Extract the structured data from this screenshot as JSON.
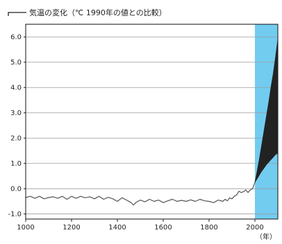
{
  "chart_data": {
    "type": "line",
    "title": "気温の変化（℃ 1990年の値との比較）",
    "xlabel": "（年）",
    "ylabel": "",
    "xlim": [
      1000,
      2100
    ],
    "ylim": [
      -1.2,
      6.5
    ],
    "x_ticks": [
      1000,
      1200,
      1400,
      1600,
      1800,
      2000
    ],
    "x_tick_labels": [
      "1000",
      "1200",
      "1400",
      "1600",
      "1800",
      "2000"
    ],
    "y_ticks": [
      -1.0,
      0.0,
      1.0,
      2.0,
      3.0,
      4.0,
      5.0,
      6.0
    ],
    "y_tick_labels": [
      "-1.0",
      "0.0",
      "1.0",
      "2.0",
      "3.0",
      "4.0",
      "5.0",
      "6.0"
    ],
    "grid": true,
    "projection_shading": {
      "x_start": 2000,
      "x_end": 2100,
      "color": "#72ccf0"
    },
    "series": [
      {
        "kind": "line",
        "color": "#555555",
        "x": [
          1000,
          1020,
          1040,
          1060,
          1080,
          1100,
          1120,
          1140,
          1160,
          1180,
          1200,
          1220,
          1240,
          1260,
          1280,
          1300,
          1320,
          1340,
          1360,
          1380,
          1400,
          1420,
          1440,
          1460,
          1470,
          1480,
          1500,
          1520,
          1540,
          1560,
          1580,
          1600,
          1620,
          1640,
          1660,
          1680,
          1700,
          1720,
          1740,
          1760,
          1780,
          1800,
          1820,
          1840,
          1860,
          1870,
          1880,
          1890,
          1900,
          1910,
          1920,
          1930,
          1940,
          1950,
          1960,
          1970,
          1980,
          1990,
          2000
        ],
        "values": [
          -0.35,
          -0.3,
          -0.38,
          -0.3,
          -0.4,
          -0.35,
          -0.32,
          -0.38,
          -0.3,
          -0.42,
          -0.3,
          -0.38,
          -0.3,
          -0.36,
          -0.32,
          -0.4,
          -0.3,
          -0.42,
          -0.34,
          -0.4,
          -0.5,
          -0.36,
          -0.45,
          -0.55,
          -0.65,
          -0.55,
          -0.45,
          -0.52,
          -0.42,
          -0.5,
          -0.45,
          -0.55,
          -0.48,
          -0.42,
          -0.5,
          -0.46,
          -0.5,
          -0.44,
          -0.5,
          -0.42,
          -0.48,
          -0.5,
          -0.55,
          -0.45,
          -0.5,
          -0.42,
          -0.48,
          -0.36,
          -0.4,
          -0.3,
          -0.25,
          -0.1,
          -0.15,
          -0.12,
          -0.05,
          -0.15,
          -0.05,
          0.0,
          0.25
        ]
      },
      {
        "kind": "band",
        "color": "#222222",
        "x": [
          2000,
          2010,
          2020,
          2030,
          2040,
          2050,
          2060,
          2070,
          2080,
          2090,
          2100
        ],
        "lower": [
          0.25,
          0.4,
          0.55,
          0.7,
          0.82,
          0.95,
          1.05,
          1.15,
          1.25,
          1.35,
          1.4
        ],
        "upper": [
          0.25,
          0.7,
          1.2,
          1.75,
          2.3,
          2.85,
          3.4,
          4.0,
          4.55,
          5.2,
          5.9
        ]
      }
    ]
  }
}
